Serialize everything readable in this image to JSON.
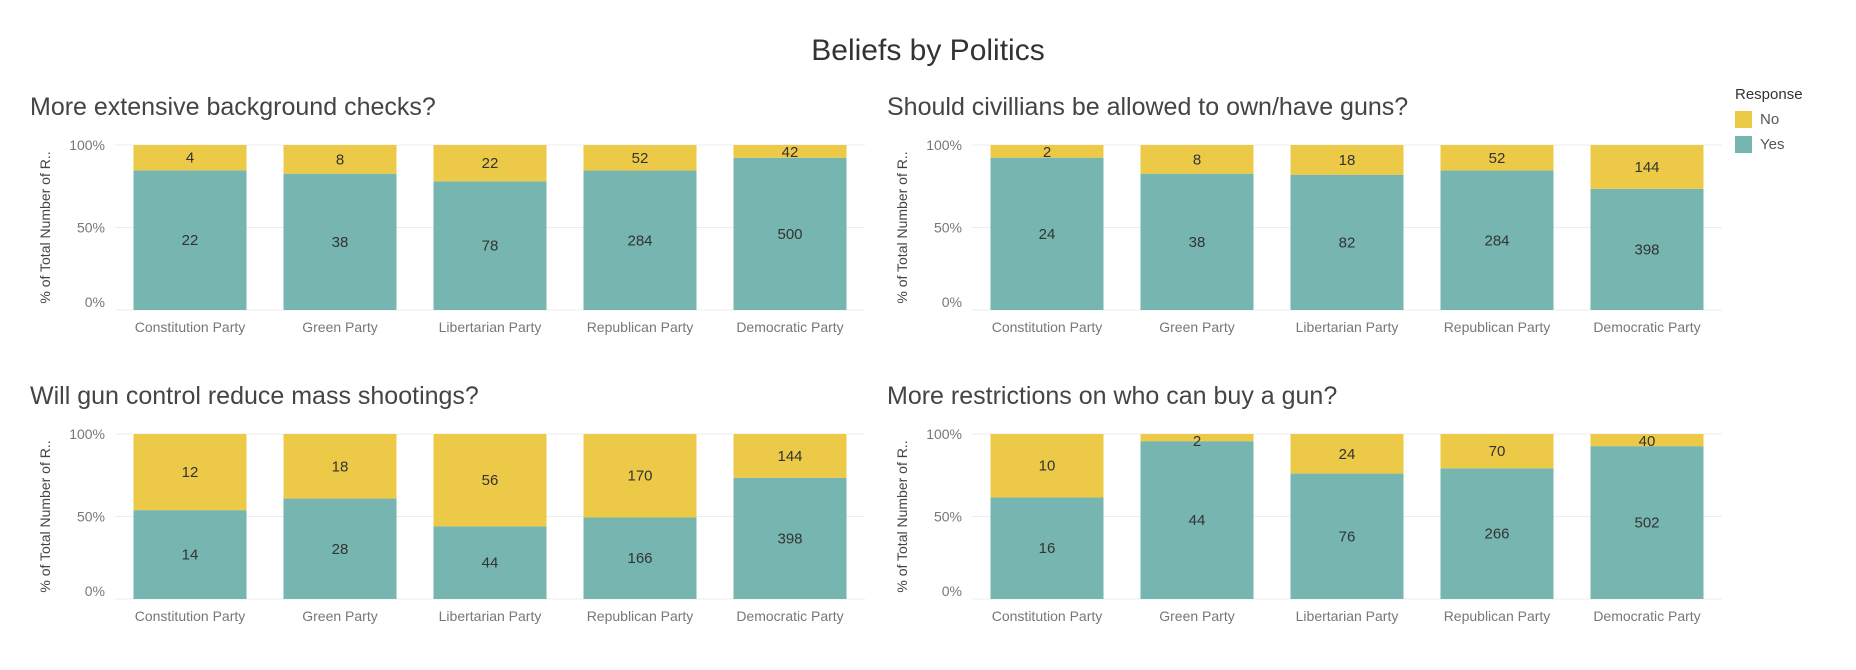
{
  "title": "Beliefs by Politics",
  "colors": {
    "yes": "#76b5b0",
    "no": "#ecc947",
    "grid": "#ececec",
    "axis_text": "#777777",
    "label_text": "#333333"
  },
  "legend": {
    "title": "Response",
    "items": [
      {
        "label": "No",
        "color": "#ecc947"
      },
      {
        "label": "Yes",
        "color": "#76b5b0"
      }
    ]
  },
  "chart_data": [
    {
      "type": "bar",
      "stacked": "percent",
      "title": "More extensive background checks?",
      "ylabel": "% of Total Number of R..",
      "yticks": [
        "100%",
        "50%",
        "0%"
      ],
      "categories": [
        "Constitution Party",
        "Green Party",
        "Libertarian Party",
        "Republican Party",
        "Democratic Party"
      ],
      "series": [
        {
          "name": "Yes",
          "values": [
            22,
            38,
            78,
            284,
            500
          ]
        },
        {
          "name": "No",
          "values": [
            4,
            8,
            22,
            52,
            42
          ]
        }
      ]
    },
    {
      "type": "bar",
      "stacked": "percent",
      "title": "Should civillians be allowed to own/have guns?",
      "ylabel": "% of Total Number of R..",
      "yticks": [
        "100%",
        "50%",
        "0%"
      ],
      "categories": [
        "Constitution Party",
        "Green Party",
        "Libertarian Party",
        "Republican Party",
        "Democratic Party"
      ],
      "series": [
        {
          "name": "Yes",
          "values": [
            24,
            38,
            82,
            284,
            398
          ]
        },
        {
          "name": "No",
          "values": [
            2,
            8,
            18,
            52,
            144
          ]
        }
      ]
    },
    {
      "type": "bar",
      "stacked": "percent",
      "title": "Will gun control reduce mass shootings?",
      "ylabel": "% of Total Number of R..",
      "yticks": [
        "100%",
        "50%",
        "0%"
      ],
      "categories": [
        "Constitution Party",
        "Green Party",
        "Libertarian Party",
        "Republican Party",
        "Democratic Party"
      ],
      "series": [
        {
          "name": "Yes",
          "values": [
            14,
            28,
            44,
            166,
            398
          ]
        },
        {
          "name": "No",
          "values": [
            12,
            18,
            56,
            170,
            144
          ]
        }
      ]
    },
    {
      "type": "bar",
      "stacked": "percent",
      "title": "More restrictions on who can buy a gun?",
      "ylabel": "% of Total Number of R..",
      "yticks": [
        "100%",
        "50%",
        "0%"
      ],
      "categories": [
        "Constitution Party",
        "Green Party",
        "Libertarian Party",
        "Republican Party",
        "Democratic Party"
      ],
      "series": [
        {
          "name": "Yes",
          "values": [
            16,
            44,
            76,
            266,
            502
          ]
        },
        {
          "name": "No",
          "values": [
            10,
            2,
            24,
            70,
            40
          ]
        }
      ]
    }
  ]
}
